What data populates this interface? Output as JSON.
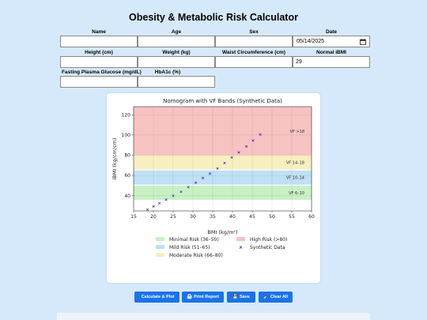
{
  "app": {
    "title": "Obesity & Metabolic Risk Calculator"
  },
  "form": {
    "row1": [
      {
        "label": "Name",
        "value": "",
        "name": "name-field"
      },
      {
        "label": "Age",
        "value": "",
        "name": "age-field"
      },
      {
        "label": "Sex",
        "value": "",
        "name": "sex-field"
      }
    ],
    "date": {
      "label": "Date",
      "value": "05/14/2025"
    },
    "row2": [
      {
        "label": "Height (cm)",
        "value": "",
        "name": "height-field"
      },
      {
        "label": "Weight (kg)",
        "value": "",
        "name": "weight-field"
      },
      {
        "label": "Waist Circumference (cm)",
        "value": "",
        "name": "waist-field"
      },
      {
        "label": "Normal iBMI",
        "value": "29",
        "name": "normal-ibmi-field"
      }
    ],
    "row3": [
      {
        "label": "Fasting Plasma Glucose (mg/dL)",
        "value": "",
        "name": "glucose-field"
      },
      {
        "label": "HbA1c (%)",
        "value": "",
        "name": "hba1c-field"
      }
    ]
  },
  "buttons": {
    "calculate": {
      "icon": "",
      "label": "Calculate & Plot"
    },
    "print": {
      "icon": "🖨",
      "label": "Print Report"
    },
    "save": {
      "icon": "💾",
      "label": "Save"
    },
    "clear": {
      "icon": "🧹",
      "label": "Clear All"
    }
  },
  "colors": {
    "accent": "#1a73e8",
    "background": "#d6e9fb",
    "band_minimal": "#c9f0c4",
    "band_mild": "#bfe0f5",
    "band_moderate": "#f7efc0",
    "band_high": "#f7c2c2",
    "marker": "#1e1ea8"
  },
  "chart_data": {
    "type": "scatter",
    "title": "Nomogram with VF Bands (Synthetic Data)",
    "xlabel": "BMI (kg/m²)",
    "ylabel": "iBMI (kg/cm/cm)",
    "xlim": [
      15,
      60
    ],
    "ylim": [
      25,
      128
    ],
    "xticks": [
      15,
      20,
      25,
      30,
      35,
      40,
      45,
      50,
      55,
      60
    ],
    "yticks": [
      40,
      60,
      80,
      100,
      120
    ],
    "grid": true,
    "bands": [
      {
        "label": "VF 6–10",
        "y0": 36,
        "y1": 50
      },
      {
        "label": "VF 10–14",
        "y0": 51,
        "y1": 65
      },
      {
        "label": "VF 14–18",
        "y0": 66,
        "y1": 80
      },
      {
        "label": "VF >18",
        "y0": 80,
        "y1": 128
      }
    ],
    "legend": [
      {
        "label": "Minimal Risk (36–50)",
        "kind": "band",
        "color": "#c9f0c4"
      },
      {
        "label": "High Risk (>80)",
        "kind": "band",
        "color": "#f7c2c2"
      },
      {
        "label": "Mild Risk (51–65)",
        "kind": "band",
        "color": "#bfe0f5"
      },
      {
        "label": "Synthetic Data",
        "kind": "marker",
        "color": "#1e1ea8"
      },
      {
        "label": "Moderate Risk (66–80)",
        "kind": "band",
        "color": "#f7efc0"
      }
    ],
    "series": [
      {
        "name": "Synthetic Data",
        "x": [
          18.5,
          20,
          21.5,
          23.2,
          25,
          27,
          28.8,
          30.7,
          32.5,
          34.3,
          36.2,
          38,
          39.8,
          41.6,
          43.5,
          45.2,
          47
        ],
        "y": [
          26.5,
          29.5,
          32.5,
          36,
          40,
          44,
          48.5,
          53,
          57.5,
          62,
          67,
          72.5,
          78,
          83,
          89,
          94.5,
          100.5
        ]
      }
    ]
  }
}
